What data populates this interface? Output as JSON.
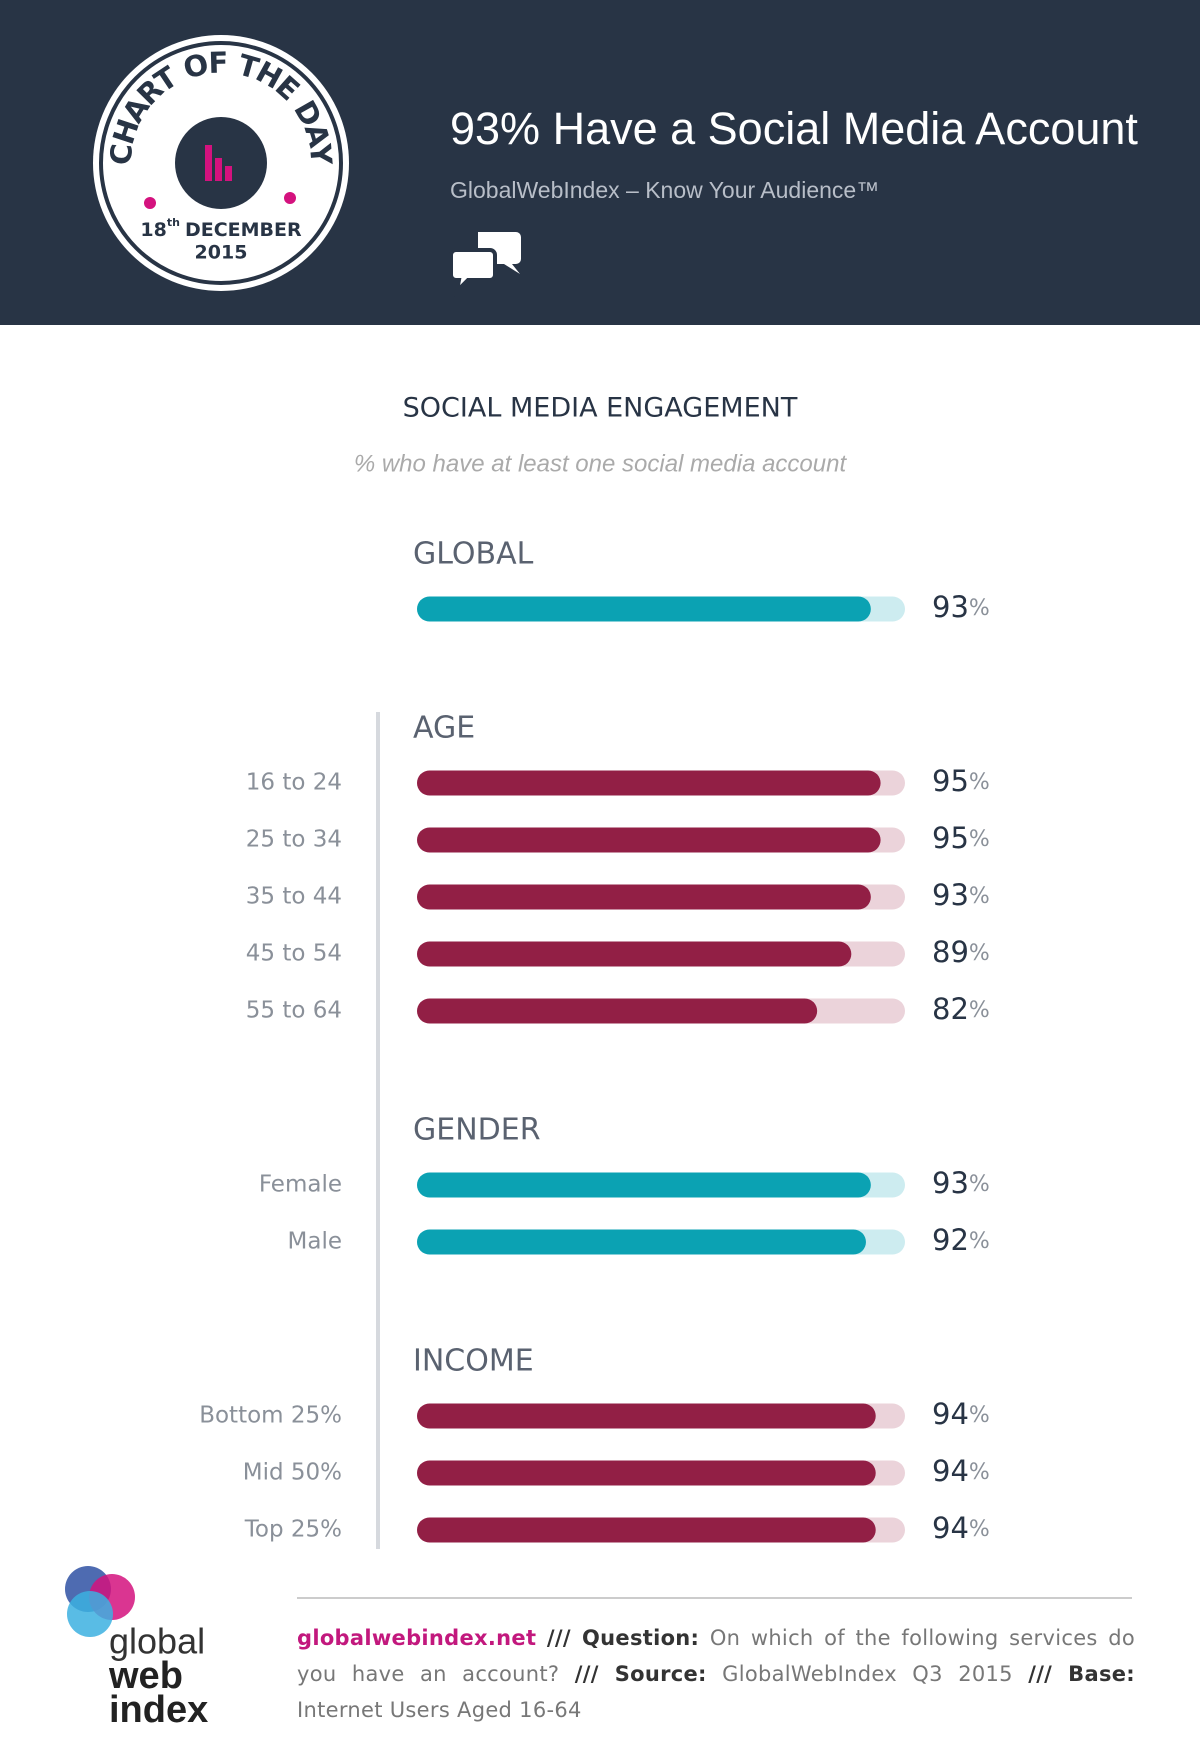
{
  "header": {
    "title": "93% Have a Social Media Account",
    "subtitle": "GlobalWebIndex – Know Your Audience™",
    "badge": {
      "label": "CHART OF THE DAY",
      "day": "18",
      "day_suffix": "th",
      "month": "DECEMBER",
      "year": "2015"
    }
  },
  "chart_title": "SOCIAL MEDIA ENGAGEMENT",
  "chart_subtitle": "% who have at least one social media account",
  "chart_data": [
    {
      "type": "bar",
      "title": "GLOBAL",
      "categories": [
        null
      ],
      "values": [
        93
      ],
      "value_labels": [
        "93%"
      ],
      "color": "#0ba2b3",
      "track_color": "#cdecf0",
      "xlim": [
        0,
        100
      ]
    },
    {
      "type": "bar",
      "title": "AGE",
      "categories": [
        "16 to 24",
        "25 to 34",
        "35 to 44",
        "45 to 54",
        "55 to 64"
      ],
      "values": [
        95,
        95,
        93,
        89,
        82
      ],
      "value_labels": [
        "95%",
        "95%",
        "93%",
        "89%",
        "82%"
      ],
      "color": "#921f45",
      "track_color": "#ebd3da",
      "xlim": [
        0,
        100
      ]
    },
    {
      "type": "bar",
      "title": "GENDER",
      "categories": [
        "Female",
        "Male"
      ],
      "values": [
        93,
        92
      ],
      "value_labels": [
        "93%",
        "92%"
      ],
      "color": "#0ba2b3",
      "track_color": "#cdecf0",
      "xlim": [
        0,
        100
      ]
    },
    {
      "type": "bar",
      "title": "INCOME",
      "categories": [
        "Bottom 25%",
        "Mid 50%",
        "Top 25%"
      ],
      "values": [
        94,
        94,
        94
      ],
      "value_labels": [
        "94%",
        "94%",
        "94%"
      ],
      "color": "#921f45",
      "track_color": "#ebd3da",
      "xlim": [
        0,
        100
      ]
    }
  ],
  "footer": {
    "site": "globalwebindex.net",
    "question_label": "/// Question:",
    "question": "On which of the following services do you have an account?",
    "source_label": "/// Source:",
    "source": "GlobalWebIndex Q3 2015",
    "base_label": "/// Base:",
    "base": "Internet Users Aged 16-64",
    "logo": [
      "global",
      "web",
      "index"
    ]
  }
}
